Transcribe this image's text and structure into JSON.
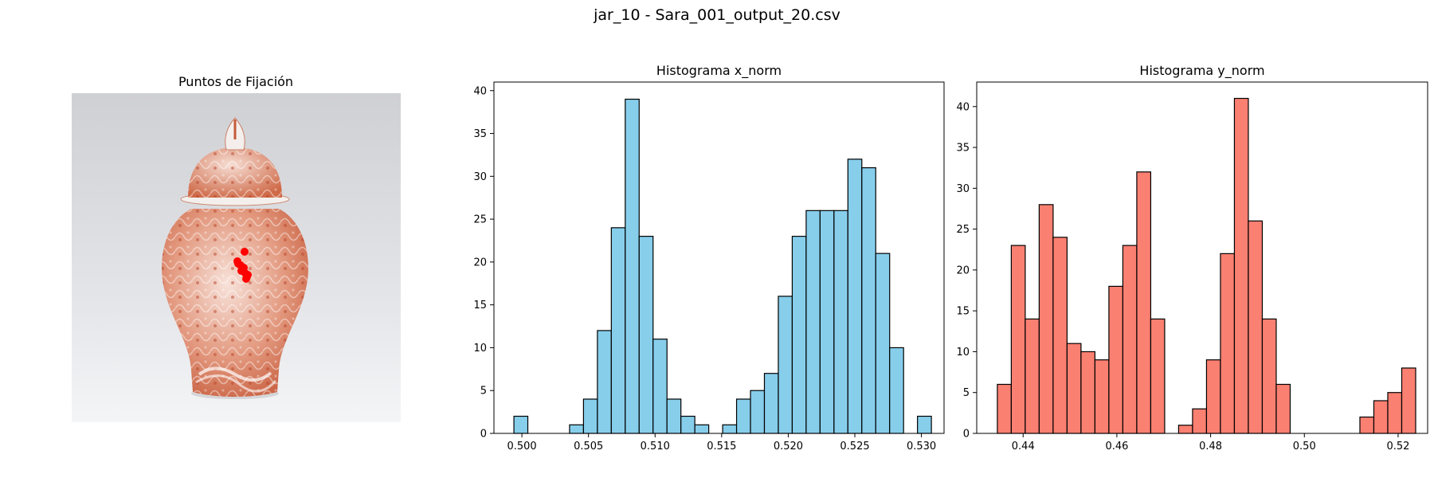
{
  "suptitle": "jar_10 - Sara_001_output_20.csv",
  "image_panel": {
    "title": "Puntos de Fijación",
    "image_subject": "red-and-white porcelain ginger jar with lid",
    "fixation_color": "#ff0000"
  },
  "chart_data": [
    {
      "type": "bar",
      "title": "Histograma x_norm",
      "bar_color": "#87ceeb",
      "edge_color": "#000000",
      "grid": false,
      "xlim": [
        0.4979,
        0.5317
      ],
      "ylim": [
        0,
        41
      ],
      "xticks": [
        0.5,
        0.505,
        0.51,
        0.515,
        0.52,
        0.525,
        0.53
      ],
      "xtick_labels": [
        "0.500",
        "0.505",
        "0.510",
        "0.515",
        "0.520",
        "0.525",
        "0.530"
      ],
      "yticks": [
        0,
        5,
        10,
        15,
        20,
        25,
        30,
        35,
        40
      ],
      "bin_start": 0.4994,
      "bin_width": 0.001045,
      "counts": [
        2,
        0,
        0,
        0,
        1,
        4,
        12,
        24,
        39,
        23,
        11,
        4,
        2,
        1,
        0,
        1,
        4,
        5,
        7,
        16,
        23,
        26,
        26,
        26,
        32,
        31,
        21,
        10,
        0,
        2
      ]
    },
    {
      "type": "bar",
      "title": "Histograma y_norm",
      "bar_color": "#fa8072",
      "edge_color": "#000000",
      "grid": false,
      "xlim": [
        0.4301,
        0.5263
      ],
      "ylim": [
        0,
        43
      ],
      "xticks": [
        0.44,
        0.46,
        0.48,
        0.5,
        0.52
      ],
      "xtick_labels": [
        "0.44",
        "0.46",
        "0.48",
        "0.50",
        "0.52"
      ],
      "yticks": [
        0,
        5,
        10,
        15,
        20,
        25,
        30,
        35,
        40
      ],
      "bin_start": 0.4345,
      "bin_width": 0.002975,
      "counts": [
        6,
        23,
        14,
        28,
        24,
        11,
        10,
        9,
        18,
        23,
        32,
        14,
        0,
        1,
        3,
        9,
        22,
        41,
        26,
        14,
        6,
        0,
        0,
        0,
        0,
        0,
        2,
        4,
        5,
        8
      ]
    }
  ]
}
